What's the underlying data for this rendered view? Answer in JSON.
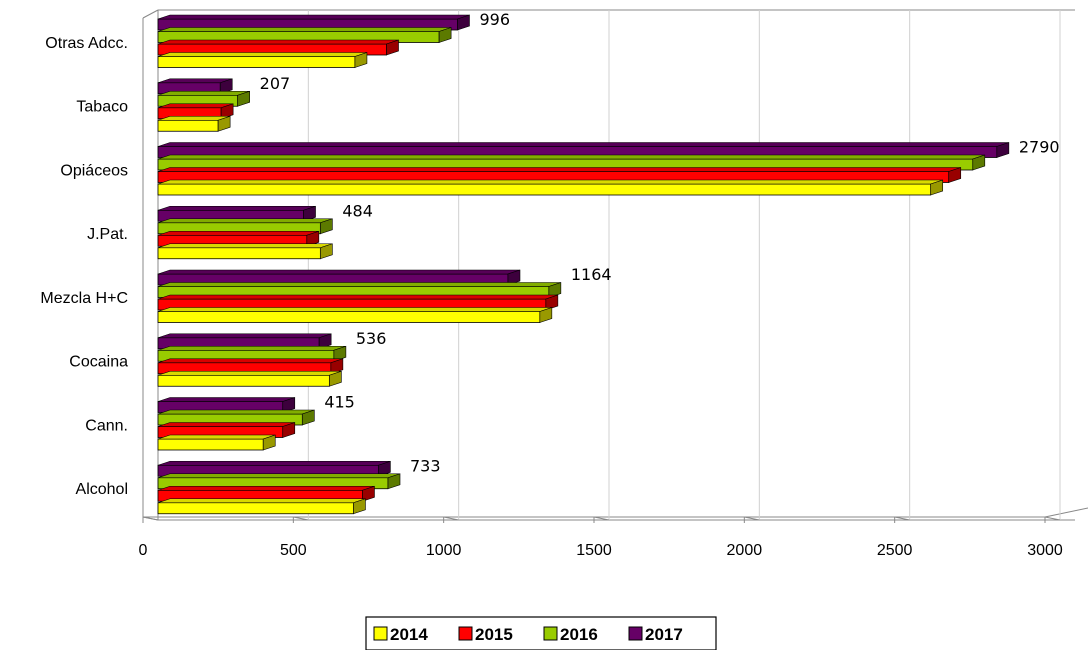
{
  "chart_data": {
    "type": "bar",
    "orientation": "horizontal",
    "three_d": true,
    "categories": [
      "Otras Adcc.",
      "Tabaco",
      "Opiáceos",
      "J.Pat.",
      "Mezcla H+C",
      "Cocaina",
      "Cann.",
      "Alcohol"
    ],
    "series": [
      {
        "name": "2014",
        "color": "#ffff00",
        "values": [
          655,
          200,
          2570,
          540,
          1270,
          570,
          350,
          650
        ]
      },
      {
        "name": "2015",
        "color": "#ff0000",
        "values": [
          760,
          210,
          2630,
          495,
          1290,
          575,
          415,
          680
        ]
      },
      {
        "name": "2016",
        "color": "#99cc00",
        "values": [
          935,
          265,
          2710,
          540,
          1300,
          585,
          480,
          765
        ]
      },
      {
        "name": "2017",
        "color": "#660066",
        "values": [
          996,
          207,
          2790,
          484,
          1164,
          536,
          415,
          733
        ]
      }
    ],
    "data_labels": [
      "996",
      "207",
      "2790",
      "484",
      "1164",
      "536",
      "415",
      "733"
    ],
    "xlim": [
      0,
      3000
    ],
    "x_ticks": [
      "0",
      "500",
      "1000",
      "1500",
      "2000",
      "2500",
      "3000"
    ],
    "grid": true,
    "legend": {
      "position": "bottom",
      "entries": [
        "2014",
        "2015",
        "2016",
        "2017"
      ]
    }
  }
}
